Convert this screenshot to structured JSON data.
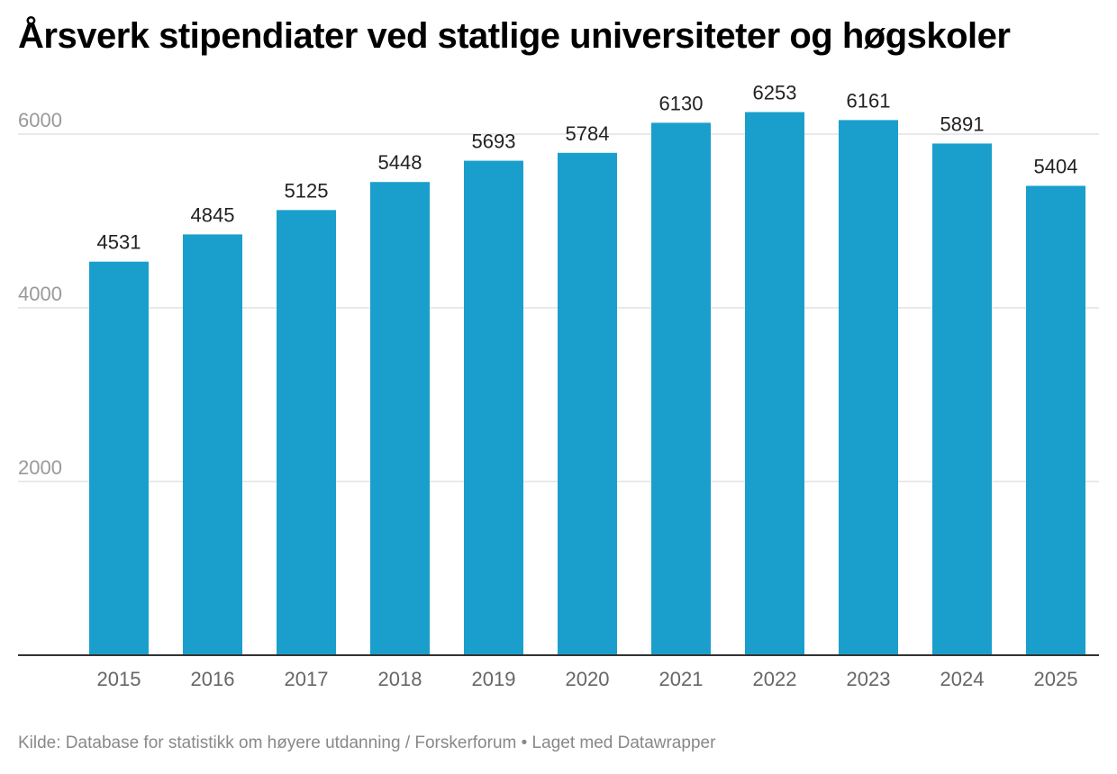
{
  "title": "Årsverk stipendiater ved statlige universiteter og høgskoler",
  "footer": {
    "source": "Kilde: Database for statistikk om høyere utdanning / Forskerforum • Laget med Datawrapper"
  },
  "colors": {
    "bar": "#1a9fcc",
    "grid": "#e2e2e2",
    "axis": "#333333",
    "tick_label": "#999999",
    "category_label": "#666666",
    "value_label": "#222222"
  },
  "chart_data": {
    "type": "bar",
    "categories": [
      "2015",
      "2016",
      "2017",
      "2018",
      "2019",
      "2020",
      "2021",
      "2022",
      "2023",
      "2024",
      "2025"
    ],
    "values": [
      4531,
      4845,
      5125,
      5448,
      5693,
      5784,
      6130,
      6253,
      6161,
      5891,
      5404
    ],
    "ylim": [
      0,
      6300
    ],
    "yticks": [
      2000,
      4000,
      6000
    ],
    "grid": true,
    "data_labels": true
  }
}
